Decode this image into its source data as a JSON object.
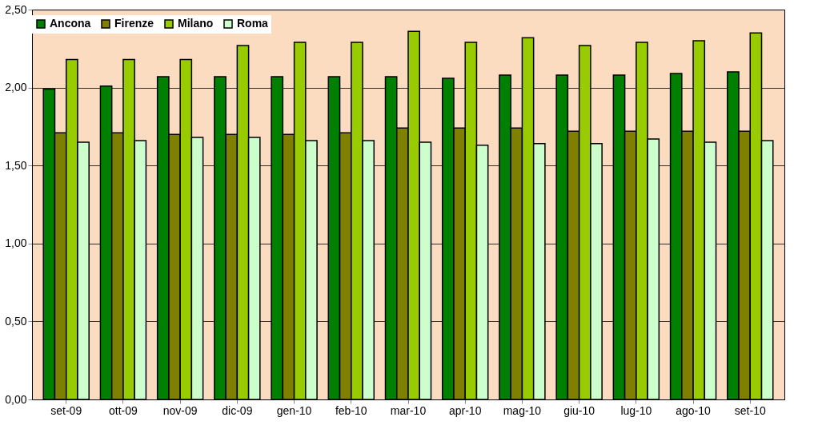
{
  "chart_data": {
    "type": "bar",
    "categories": [
      "set-09",
      "ott-09",
      "nov-09",
      "dic-09",
      "gen-10",
      "feb-10",
      "mar-10",
      "apr-10",
      "mag-10",
      "giu-10",
      "lug-10",
      "ago-10",
      "set-10"
    ],
    "series": [
      {
        "name": "Ancona",
        "color": "#008000",
        "values": [
          1.99,
          2.01,
          2.07,
          2.07,
          2.07,
          2.07,
          2.07,
          2.06,
          2.08,
          2.08,
          2.08,
          2.09,
          2.1
        ]
      },
      {
        "name": "Firenze",
        "color": "#808000",
        "values": [
          1.71,
          1.71,
          1.7,
          1.7,
          1.7,
          1.71,
          1.74,
          1.74,
          1.74,
          1.72,
          1.72,
          1.72,
          1.72
        ]
      },
      {
        "name": "Milano",
        "color": "#99cc00",
        "values": [
          2.18,
          2.18,
          2.18,
          2.27,
          2.29,
          2.29,
          2.36,
          2.29,
          2.32,
          2.27,
          2.29,
          2.3,
          2.35
        ]
      },
      {
        "name": "Roma",
        "color": "#ccffcc",
        "values": [
          1.65,
          1.66,
          1.68,
          1.68,
          1.66,
          1.66,
          1.65,
          1.63,
          1.64,
          1.64,
          1.67,
          1.65,
          1.66
        ]
      }
    ],
    "ylim": [
      0,
      2.5
    ],
    "yticks": [
      {
        "value": 0,
        "label": "0,00"
      },
      {
        "value": 0.5,
        "label": "0,50"
      },
      {
        "value": 1,
        "label": "1,00"
      },
      {
        "value": 1.5,
        "label": "1,50"
      },
      {
        "value": 2,
        "label": "2,00"
      },
      {
        "value": 2.5,
        "label": "2,50"
      }
    ],
    "grid": "y",
    "legend": "top"
  }
}
